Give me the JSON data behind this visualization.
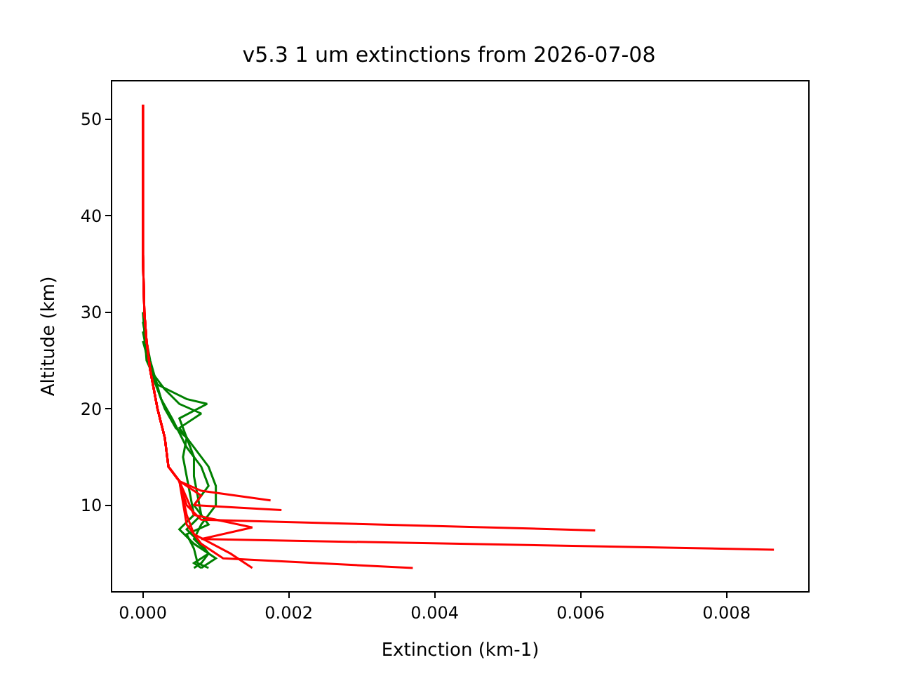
{
  "chart_data": {
    "type": "line",
    "title": "v5.3 1 um extinctions from 2026-07-08",
    "xlabel": "Extinction (km-1)",
    "ylabel": "Altitude (km)",
    "xlim": [
      -0.00042,
      0.00912
    ],
    "ylim": [
      1.1,
      53.9
    ],
    "xticks": [
      {
        "value": 0,
        "label": "0.000"
      },
      {
        "value": 0.002,
        "label": "0.002"
      },
      {
        "value": 0.004,
        "label": "0.004"
      },
      {
        "value": 0.006,
        "label": "0.006"
      },
      {
        "value": 0.008,
        "label": "0.008"
      }
    ],
    "yticks": [
      10,
      20,
      30,
      40,
      50
    ],
    "marker": "none",
    "line_style": "solid",
    "series": [
      {
        "color": "#008000",
        "x": [
          0,
          5e-05,
          0.0002,
          0.0006,
          0.00088,
          0.0005,
          0.0006,
          0.0007,
          0.0007,
          0.00075,
          0.0008,
          0.0006,
          0.0008,
          0.0009,
          0.0007,
          0.0008
        ],
        "values": [
          30,
          25,
          22.5,
          21,
          20.5,
          19,
          17,
          15,
          13,
          11,
          9,
          7.5,
          6,
          5,
          4,
          3.5
        ]
      },
      {
        "color": "#008000",
        "x": [
          0,
          0.0001,
          0.0003,
          0.0005,
          0.0008,
          0.0005,
          0.0007,
          0.0009,
          0.001,
          0.001,
          0.0008,
          0.0007,
          0.0009,
          0.0008,
          0.0007
        ],
        "values": [
          28,
          24,
          22,
          20.5,
          19.5,
          18,
          16,
          14,
          12,
          10,
          8,
          6.5,
          5,
          4,
          3.5
        ]
      },
      {
        "color": "#008000",
        "x": [
          0,
          0.00015,
          0.0003,
          0.00045,
          0.0006,
          0.00055,
          0.0006,
          0.00065,
          0.0007,
          0.0005,
          0.0007,
          0.001,
          0.0008
        ],
        "values": [
          27,
          23,
          20,
          18,
          17,
          15,
          13,
          11,
          9,
          7.5,
          6,
          4.5,
          3.5
        ]
      },
      {
        "color": "#008000",
        "x": [
          0,
          0.0001,
          0.00025,
          0.0004,
          0.0005,
          0.0006,
          0.0008,
          0.0009,
          0.0007,
          0.0009,
          0.0006,
          0.0007,
          0.00075,
          0.0009
        ],
        "values": [
          29,
          25,
          21,
          19,
          17.5,
          16,
          14,
          12,
          10,
          8,
          7,
          5.5,
          4,
          3.5
        ]
      },
      {
        "color": "#ff0000",
        "x": [
          0,
          0,
          2e-05,
          5e-05,
          0.0001,
          0.0002,
          0.0003,
          0.00035,
          0.0005,
          0.0008,
          0.00175
        ],
        "values": [
          51.5,
          36,
          30,
          27,
          24,
          20,
          17,
          14,
          12.5,
          11.5,
          10.5
        ]
      },
      {
        "color": "#ff0000",
        "x": [
          0,
          0,
          2e-05,
          5e-05,
          0.0001,
          0.0002,
          0.0003,
          0.00035,
          0.0005,
          0.0008,
          0.0007,
          0.0019
        ],
        "values": [
          51.5,
          36,
          30,
          27,
          24,
          20,
          17,
          14,
          12.5,
          11,
          10,
          9.5
        ]
      },
      {
        "color": "#ff0000",
        "x": [
          0,
          0,
          2e-05,
          5e-05,
          0.0001,
          0.0002,
          0.0003,
          0.00035,
          0.0005,
          0.0006,
          0.0008,
          0.0062
        ],
        "values": [
          51.5,
          36,
          30,
          27,
          24,
          20,
          17,
          14,
          12.5,
          10,
          8.5,
          7.4
        ]
      },
      {
        "color": "#ff0000",
        "x": [
          0,
          0,
          2e-05,
          5e-05,
          0.0001,
          0.0002,
          0.0003,
          0.00035,
          0.0005,
          0.0007,
          0.0015,
          0.0008,
          0.00865
        ],
        "values": [
          51.5,
          36,
          30,
          27,
          24,
          20,
          17,
          14,
          12.5,
          9,
          7.7,
          6.5,
          5.4
        ]
      },
      {
        "color": "#ff0000",
        "x": [
          0,
          0,
          2e-05,
          5e-05,
          0.0001,
          0.0002,
          0.0003,
          0.00035,
          0.0005,
          0.0006,
          0.0008,
          0.0011,
          0.0037
        ],
        "values": [
          51.5,
          36,
          30,
          27,
          24,
          20,
          17,
          14,
          12.5,
          8,
          6,
          4.5,
          3.5
        ]
      },
      {
        "color": "#ff0000",
        "x": [
          0,
          0,
          2e-05,
          5e-05,
          0.0001,
          0.0002,
          0.0003,
          0.00035,
          0.0005,
          0.0006,
          0.0007,
          0.0012,
          0.0015
        ],
        "values": [
          51.5,
          36,
          30,
          27,
          24,
          20,
          17,
          14,
          12.5,
          9,
          7,
          5,
          3.5
        ]
      }
    ]
  }
}
